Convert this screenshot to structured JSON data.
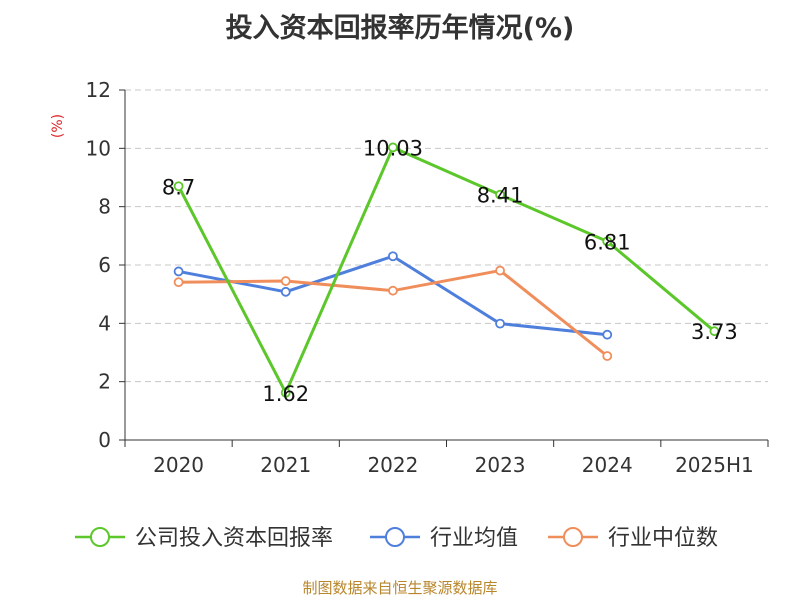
{
  "title": "投入资本回报率历年情况(%)",
  "source": "制图数据来自恒生聚源数据库",
  "chart_data": {
    "type": "line",
    "title": "投入资本回报率历年情况(%)",
    "ylabel": "(%)",
    "xlabel": "",
    "categories": [
      "2020",
      "2021",
      "2022",
      "2023",
      "2024",
      "2025H1"
    ],
    "ylim": [
      0,
      12
    ],
    "yticks": [
      0,
      2,
      4,
      6,
      8,
      10,
      12
    ],
    "grid": "horizontal-dashed",
    "legend_position": "bottom",
    "series": [
      {
        "name": "公司投入资本回报率",
        "color": "#5cc72b",
        "values": [
          8.7,
          1.62,
          10.03,
          8.41,
          6.81,
          3.73
        ],
        "labels": [
          "8.7",
          "1.62",
          "10.03",
          "8.41",
          "6.81",
          "3.73"
        ]
      },
      {
        "name": "行业均值",
        "color": "#4f7fdc",
        "values": [
          5.78,
          5.08,
          6.3,
          3.99,
          3.61,
          null
        ]
      },
      {
        "name": "行业中位数",
        "color": "#f08e5b",
        "values": [
          5.41,
          5.45,
          5.12,
          5.81,
          2.88,
          null
        ]
      }
    ]
  }
}
